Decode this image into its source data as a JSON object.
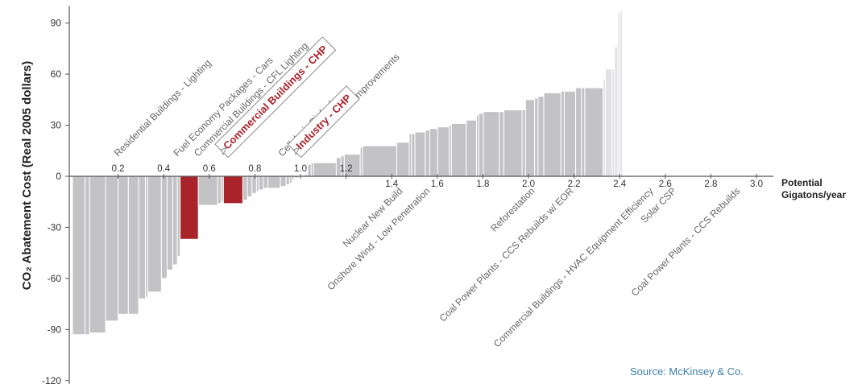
{
  "chart_data": {
    "type": "bar",
    "subtype": "marginal-abatement-cost-curve",
    "ylabel": "CO₂ Abatement Cost (Real 2005 dollars)",
    "xlabel_line1": "Potential",
    "xlabel_line2": "Gigatons/year",
    "ylim": [
      -120,
      100
    ],
    "xlim": [
      0,
      3.1
    ],
    "yticks": [
      90,
      60,
      30,
      0,
      -30,
      -60,
      -90,
      -120
    ],
    "xticks": [
      0.2,
      0.4,
      0.6,
      0.8,
      1.0,
      1.2,
      1.4,
      1.6,
      1.8,
      2.0,
      2.2,
      2.4,
      2.6,
      2.8,
      3.0
    ],
    "xtick_labels": [
      "0.2",
      "0.4",
      "0.6",
      "0.8",
      "1.0",
      "1.2",
      "1.4",
      "1.6",
      "1.8",
      "2.0",
      "2.2",
      "2.4",
      "2.6",
      "2.8",
      "3.0"
    ],
    "source": "Source: McKinsey & Co.",
    "colors": {
      "default": "#c3c3c6",
      "highlight": "#a8232a",
      "light": "#e2e2e4",
      "source": "#3a7ea8"
    },
    "bars": [
      {
        "w": 0.055,
        "v": -93
      },
      {
        "w": 0.02,
        "v": -93
      },
      {
        "w": 0.07,
        "v": -92
      },
      {
        "w": 0.055,
        "v": -85
      },
      {
        "w": 0.045,
        "v": -81
      },
      {
        "w": 0.045,
        "v": -81
      },
      {
        "w": 0.03,
        "v": -72
      },
      {
        "w": 0.01,
        "v": -71
      },
      {
        "w": 0.06,
        "v": -68
      },
      {
        "w": 0.025,
        "v": -60
      },
      {
        "w": 0.025,
        "v": -55
      },
      {
        "w": 0.02,
        "v": -52
      },
      {
        "w": 0.012,
        "v": -47
      },
      {
        "w": 0.08,
        "v": -37,
        "highlight": true
      },
      {
        "w": 0.085,
        "v": -17
      },
      {
        "w": 0.015,
        "v": -16
      },
      {
        "w": 0.01,
        "v": -15
      },
      {
        "w": 0.085,
        "v": -16,
        "highlight": true
      },
      {
        "w": 0.02,
        "v": -14
      },
      {
        "w": 0.02,
        "v": -12
      },
      {
        "w": 0.02,
        "v": -10
      },
      {
        "w": 0.01,
        "v": -9
      },
      {
        "w": 0.02,
        "v": -8
      },
      {
        "w": 0.02,
        "v": -7
      },
      {
        "w": 0.055,
        "v": -7
      },
      {
        "w": 0.025,
        "v": -6
      },
      {
        "w": 0.015,
        "v": -5
      },
      {
        "w": 0.01,
        "v": -4
      },
      {
        "w": 0.01,
        "v": -2
      },
      {
        "w": 0.02,
        "v": -1
      },
      {
        "w": 0.025,
        "v": 0.5
      },
      {
        "w": 0.015,
        "v": 1
      },
      {
        "w": 0.015,
        "v": 7
      },
      {
        "w": 0.01,
        "v": 8
      },
      {
        "w": 0.1,
        "v": 8
      },
      {
        "w": 0.02,
        "v": 11
      },
      {
        "w": 0.015,
        "v": 12
      },
      {
        "w": 0.07,
        "v": 13
      },
      {
        "w": 0.01,
        "v": 17
      },
      {
        "w": 0.15,
        "v": 18
      },
      {
        "w": 0.055,
        "v": 20
      },
      {
        "w": 0.01,
        "v": 25
      },
      {
        "w": 0.015,
        "v": 25
      },
      {
        "w": 0.045,
        "v": 26
      },
      {
        "w": 0.02,
        "v": 27
      },
      {
        "w": 0.035,
        "v": 28
      },
      {
        "w": 0.05,
        "v": 29
      },
      {
        "w": 0.01,
        "v": 30
      },
      {
        "w": 0.065,
        "v": 31
      },
      {
        "w": 0.045,
        "v": 33
      },
      {
        "w": 0.01,
        "v": 36
      },
      {
        "w": 0.02,
        "v": 37
      },
      {
        "w": 0.07,
        "v": 38
      },
      {
        "w": 0.02,
        "v": 38
      },
      {
        "w": 0.08,
        "v": 39
      },
      {
        "w": 0.015,
        "v": 39
      },
      {
        "w": 0.04,
        "v": 45
      },
      {
        "w": 0.015,
        "v": 46
      },
      {
        "w": 0.025,
        "v": 47
      },
      {
        "w": 0.075,
        "v": 49
      },
      {
        "w": 0.015,
        "v": 50
      },
      {
        "w": 0.05,
        "v": 50
      },
      {
        "w": 0.025,
        "v": 52
      },
      {
        "w": 0.015,
        "v": 52
      },
      {
        "w": 0.08,
        "v": 52
      },
      {
        "w": 0.01,
        "v": 57,
        "light": true
      },
      {
        "w": 0.03,
        "v": 63,
        "light": true
      },
      {
        "w": 0.01,
        "v": 63,
        "light": true
      },
      {
        "w": 0.015,
        "v": 76,
        "light": true
      },
      {
        "w": 0.01,
        "v": 96,
        "light": true
      },
      {
        "w": 0.01,
        "v": 97,
        "light": true
      }
    ],
    "annotations_above": [
      {
        "label": "Residential Buildings - Lighting",
        "x": 0.2
      },
      {
        "label": "Fuel Economy Packages - Cars",
        "x": 0.46
      },
      {
        "label": "Commercial Buildings - CFL Lighting",
        "x": 0.55
      },
      {
        "label": "Cellulosic Biofuels",
        "x": 0.92
      },
      {
        "label": "Industrial Process Improvements",
        "x": 1.0
      }
    ],
    "annotations_highlight": [
      {
        "label": "Commercial Buildings - CHP",
        "x": 0.66
      },
      {
        "label": "Industry - CHP",
        "x": 0.98
      }
    ],
    "annotations_below": [
      {
        "label": "Nuclear New Build",
        "x": 1.45
      },
      {
        "label": "Onshore Wind - Low Penetration",
        "x": 1.57
      },
      {
        "label": "Reforestation",
        "x": 2.03
      },
      {
        "label": "Coal Power Plants - CCS Rebuilds w/ EOR",
        "x": 2.2
      },
      {
        "label": "Commercial Buildings - HVAC Equipment Efficiency",
        "x": 2.55
      },
      {
        "label": "Solar CSP",
        "x": 2.65
      },
      {
        "label": "Coal Power Plants - CCS Rebuilds",
        "x": 2.93
      }
    ]
  }
}
